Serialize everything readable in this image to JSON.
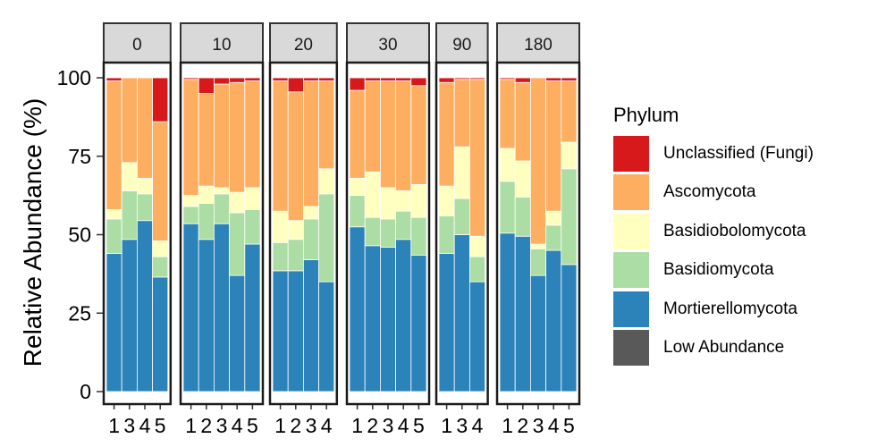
{
  "chart_data": {
    "type": "bar",
    "stacked": true,
    "ylabel": "Relative Abundance (%)",
    "xlabel": "",
    "ylim": [
      0,
      100
    ],
    "yticks": [
      0,
      25,
      50,
      75,
      100
    ],
    "legend": {
      "title": "Phylum",
      "position": "right",
      "entries": [
        {
          "name": "Unclassified (Fungi)",
          "color": "#d7191c"
        },
        {
          "name": "Ascomycota",
          "color": "#fdae61"
        },
        {
          "name": "Basidiobolomycota",
          "color": "#ffffbf"
        },
        {
          "name": "Basidiomycota",
          "color": "#abdda4"
        },
        {
          "name": "Mortierellomycota",
          "color": "#2b83ba"
        },
        {
          "name": "Low Abundance",
          "color": "#595959"
        }
      ]
    },
    "stack_order": [
      "Mortierellomycota",
      "Basidiomycota",
      "Basidiobolomycota",
      "Ascomycota",
      "Unclassified (Fungi)",
      "Low Abundance"
    ],
    "facets": [
      {
        "label": "0",
        "samples": [
          {
            "x": "1",
            "Mortierellomycota": 44,
            "Basidiomycota": 11,
            "Basidiobolomycota": 3,
            "Ascomycota": 41,
            "Unclassified (Fungi)": 1,
            "Low Abundance": 0
          },
          {
            "x": "3",
            "Mortierellomycota": 48.5,
            "Basidiomycota": 15.5,
            "Basidiobolomycota": 9,
            "Ascomycota": 27,
            "Unclassified (Fungi)": 0,
            "Low Abundance": 0
          },
          {
            "x": "4",
            "Mortierellomycota": 54.5,
            "Basidiomycota": 8.5,
            "Basidiobolomycota": 5,
            "Ascomycota": 32,
            "Unclassified (Fungi)": 0,
            "Low Abundance": 0
          },
          {
            "x": "5",
            "Mortierellomycota": 36.5,
            "Basidiomycota": 6.5,
            "Basidiobolomycota": 5,
            "Ascomycota": 38,
            "Unclassified (Fungi)": 14,
            "Low Abundance": 0
          }
        ]
      },
      {
        "label": "10",
        "samples": [
          {
            "x": "1",
            "Mortierellomycota": 53.5,
            "Basidiomycota": 5.5,
            "Basidiobolomycota": 3.5,
            "Ascomycota": 37,
            "Unclassified (Fungi)": 0.5,
            "Low Abundance": 0
          },
          {
            "x": "2",
            "Mortierellomycota": 48.5,
            "Basidiomycota": 11.5,
            "Basidiobolomycota": 5.5,
            "Ascomycota": 29.5,
            "Unclassified (Fungi)": 5,
            "Low Abundance": 0
          },
          {
            "x": "3",
            "Mortierellomycota": 53.5,
            "Basidiomycota": 9.5,
            "Basidiobolomycota": 2,
            "Ascomycota": 33,
            "Unclassified (Fungi)": 2,
            "Low Abundance": 0
          },
          {
            "x": "4",
            "Mortierellomycota": 37,
            "Basidiomycota": 20,
            "Basidiobolomycota": 6.5,
            "Ascomycota": 35,
            "Unclassified (Fungi)": 1.5,
            "Low Abundance": 0
          },
          {
            "x": "5",
            "Mortierellomycota": 47,
            "Basidiomycota": 11,
            "Basidiobolomycota": 7,
            "Ascomycota": 34,
            "Unclassified (Fungi)": 1,
            "Low Abundance": 0
          }
        ]
      },
      {
        "label": "20",
        "samples": [
          {
            "x": "1",
            "Mortierellomycota": 38.5,
            "Basidiomycota": 9,
            "Basidiobolomycota": 10,
            "Ascomycota": 41.5,
            "Unclassified (Fungi)": 1,
            "Low Abundance": 0
          },
          {
            "x": "2",
            "Mortierellomycota": 38.5,
            "Basidiomycota": 10,
            "Basidiobolomycota": 6,
            "Ascomycota": 41,
            "Unclassified (Fungi)": 4.5,
            "Low Abundance": 0
          },
          {
            "x": "3",
            "Mortierellomycota": 42,
            "Basidiomycota": 13,
            "Basidiobolomycota": 4,
            "Ascomycota": 40,
            "Unclassified (Fungi)": 1,
            "Low Abundance": 0
          },
          {
            "x": "4",
            "Mortierellomycota": 35,
            "Basidiomycota": 28,
            "Basidiobolomycota": 8,
            "Ascomycota": 28,
            "Unclassified (Fungi)": 1,
            "Low Abundance": 0
          }
        ]
      },
      {
        "label": "30",
        "samples": [
          {
            "x": "1",
            "Mortierellomycota": 52.5,
            "Basidiomycota": 10,
            "Basidiobolomycota": 5.5,
            "Ascomycota": 28,
            "Unclassified (Fungi)": 4,
            "Low Abundance": 0
          },
          {
            "x": "2",
            "Mortierellomycota": 46.5,
            "Basidiomycota": 9,
            "Basidiobolomycota": 14.5,
            "Ascomycota": 29,
            "Unclassified (Fungi)": 1,
            "Low Abundance": 0
          },
          {
            "x": "3",
            "Mortierellomycota": 46,
            "Basidiomycota": 9,
            "Basidiobolomycota": 10,
            "Ascomycota": 34,
            "Unclassified (Fungi)": 1,
            "Low Abundance": 0
          },
          {
            "x": "4",
            "Mortierellomycota": 48.5,
            "Basidiomycota": 9,
            "Basidiobolomycota": 6.5,
            "Ascomycota": 35,
            "Unclassified (Fungi)": 1,
            "Low Abundance": 0
          },
          {
            "x": "5",
            "Mortierellomycota": 43.5,
            "Basidiomycota": 12,
            "Basidiobolomycota": 10.5,
            "Ascomycota": 31.5,
            "Unclassified (Fungi)": 2.5,
            "Low Abundance": 0
          }
        ]
      },
      {
        "label": "90",
        "samples": [
          {
            "x": "1",
            "Mortierellomycota": 44,
            "Basidiomycota": 12,
            "Basidiobolomycota": 9.5,
            "Ascomycota": 33,
            "Unclassified (Fungi)": 1.5,
            "Low Abundance": 0
          },
          {
            "x": "3",
            "Mortierellomycota": 50,
            "Basidiomycota": 11.5,
            "Basidiobolomycota": 16.5,
            "Ascomycota": 21.5,
            "Unclassified (Fungi)": 0.5,
            "Low Abundance": 0
          },
          {
            "x": "4",
            "Mortierellomycota": 35,
            "Basidiomycota": 8,
            "Basidiobolomycota": 6.5,
            "Ascomycota": 50,
            "Unclassified (Fungi)": 0.5,
            "Low Abundance": 0
          }
        ]
      },
      {
        "label": "180",
        "samples": [
          {
            "x": "1",
            "Mortierellomycota": 50.5,
            "Basidiomycota": 16.5,
            "Basidiobolomycota": 10.5,
            "Ascomycota": 22,
            "Unclassified (Fungi)": 0.5,
            "Low Abundance": 0
          },
          {
            "x": "2",
            "Mortierellomycota": 49.5,
            "Basidiomycota": 12.5,
            "Basidiobolomycota": 11.5,
            "Ascomycota": 25,
            "Unclassified (Fungi)": 1.5,
            "Low Abundance": 0
          },
          {
            "x": "3",
            "Mortierellomycota": 37,
            "Basidiomycota": 8.5,
            "Basidiobolomycota": 1.5,
            "Ascomycota": 53,
            "Unclassified (Fungi)": 0,
            "Low Abundance": 0
          },
          {
            "x": "4",
            "Mortierellomycota": 45,
            "Basidiomycota": 8,
            "Basidiobolomycota": 4.5,
            "Ascomycota": 41.5,
            "Unclassified (Fungi)": 1,
            "Low Abundance": 0
          },
          {
            "x": "5",
            "Mortierellomycota": 40.5,
            "Basidiomycota": 30.5,
            "Basidiobolomycota": 8.5,
            "Ascomycota": 19.5,
            "Unclassified (Fungi)": 1,
            "Low Abundance": 0
          }
        ]
      }
    ]
  }
}
